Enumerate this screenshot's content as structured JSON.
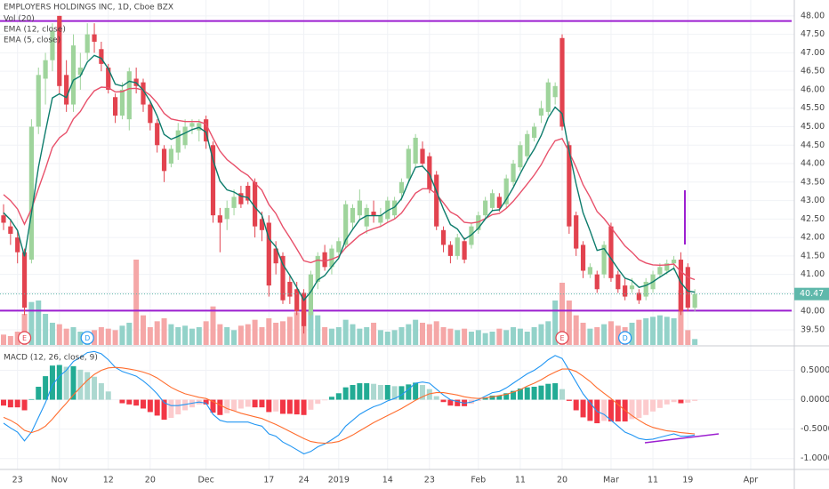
{
  "chart_data": {
    "type": "candlestick",
    "title": "EMPLOYERS HOLDINGS INC, 1D, Cboe BZX",
    "categories": [
      null,
      null,
      "23",
      null,
      null,
      null,
      null,
      null,
      "Nov",
      null,
      null,
      null,
      null,
      null,
      null,
      "12",
      null,
      null,
      null,
      null,
      null,
      "20",
      null,
      null,
      null,
      null,
      null,
      null,
      null,
      "Dec",
      null,
      null,
      null,
      null,
      null,
      null,
      null,
      null,
      "17",
      null,
      null,
      null,
      null,
      "24",
      null,
      null,
      null,
      null,
      "2019",
      null,
      null,
      null,
      null,
      null,
      null,
      "14",
      null,
      null,
      null,
      null,
      null,
      "23",
      null,
      null,
      null,
      null,
      null,
      null,
      "Feb",
      null,
      null,
      null,
      null,
      null,
      "11",
      null,
      null,
      null,
      null,
      null,
      "20",
      null,
      null,
      null,
      null,
      null,
      null,
      "Mar",
      null,
      null,
      null,
      null,
      null,
      "11",
      null,
      null,
      null,
      null,
      "19",
      null,
      null,
      null,
      null,
      null,
      null,
      null,
      null,
      "Apr"
    ],
    "open": [
      42.6,
      42.3,
      42.0,
      41.6,
      41.4,
      45.0,
      46.3,
      46.8,
      48.0,
      46.4,
      45.6,
      46.4,
      47.0,
      47.5,
      47.1,
      46.6,
      45.8,
      45.3,
      45.2,
      46.3,
      46.2,
      45.6,
      45.1,
      44.4,
      44.0,
      44.3,
      44.5,
      45.0,
      44.9,
      45.2,
      44.5,
      42.6,
      42.5,
      42.8,
      43.2,
      43.4,
      43.5,
      42.5,
      42.4,
      41.7,
      41.5,
      40.8,
      40.6,
      40.5,
      39.9,
      40.8,
      41.6,
      41.2,
      41.6,
      41.8,
      42.4,
      42.6,
      42.3,
      42.7,
      42.4,
      42.5,
      42.6,
      43.2,
      43.6,
      44.0,
      44.4,
      44.2,
      43.7,
      42.2,
      41.8,
      41.5,
      41.9,
      41.8,
      42.2,
      42.6,
      42.8,
      43.1,
      42.9,
      43.5,
      43.9,
      44.2,
      44.7,
      45.3,
      45.4,
      45.8,
      47.4,
      44.5,
      42.6,
      41.8,
      41.0,
      41.0,
      41.0,
      42.3,
      41.0,
      40.7,
      40.6,
      40.5,
      40.4,
      40.6,
      41.0,
      41.1,
      41.3,
      41.4,
      41.2,
      40.1,
      null,
      null,
      null,
      null,
      null,
      null,
      null,
      null
    ],
    "high": [
      42.9,
      42.5,
      42.2,
      41.7,
      45.2,
      46.6,
      47.0,
      47.8,
      48.0,
      46.8,
      47.5,
      47.0,
      47.8,
      47.8,
      47.3,
      46.7,
      45.9,
      46.2,
      46.6,
      46.6,
      46.3,
      45.7,
      45.2,
      44.5,
      44.5,
      45.1,
      45.2,
      45.2,
      45.2,
      45.3,
      44.6,
      42.8,
      43.0,
      43.3,
      43.4,
      43.5,
      43.6,
      42.7,
      42.6,
      41.9,
      41.6,
      41.0,
      40.8,
      40.6,
      41.1,
      41.6,
      41.8,
      41.8,
      42.0,
      43.0,
      42.9,
      43.3,
      42.9,
      43.0,
      42.8,
      43.1,
      43.1,
      43.6,
      44.5,
      44.8,
      44.6,
      44.3,
      43.8,
      42.3,
      41.9,
      42.1,
      42.0,
      42.4,
      42.7,
      43.1,
      43.3,
      43.2,
      43.7,
      44.1,
      44.6,
      44.9,
      45.1,
      45.7,
      46.3,
      46.2,
      47.5,
      44.6,
      42.7,
      41.9,
      41.3,
      41.1,
      41.9,
      42.4,
      41.1,
      40.9,
      40.9,
      40.6,
      40.9,
      41.1,
      41.3,
      41.4,
      41.5,
      41.6,
      41.3,
      40.6,
      null,
      null,
      null,
      null,
      null,
      null,
      null,
      null
    ],
    "low": [
      42.2,
      41.8,
      41.3,
      39.9,
      41.3,
      44.8,
      45.6,
      46.5,
      45.9,
      45.4,
      45.4,
      46.0,
      46.8,
      47.0,
      46.5,
      45.9,
      45.1,
      45.2,
      44.9,
      45.9,
      45.4,
      44.9,
      44.3,
      43.5,
      43.9,
      44.1,
      44.4,
      44.8,
      44.6,
      44.4,
      42.4,
      41.6,
      42.2,
      42.6,
      42.8,
      42.9,
      42.0,
      41.9,
      40.4,
      41.0,
      40.2,
      40.2,
      39.9,
      39.4,
      39.8,
      40.6,
      41.1,
      41.0,
      41.4,
      41.7,
      42.2,
      42.5,
      42.1,
      42.4,
      42.3,
      42.4,
      42.5,
      43.0,
      43.5,
      43.9,
      43.9,
      43.2,
      42.2,
      41.6,
      41.3,
      41.4,
      41.3,
      41.7,
      42.1,
      42.5,
      42.7,
      42.7,
      42.8,
      43.4,
      43.8,
      44.1,
      44.6,
      45.1,
      45.3,
      45.6,
      44.9,
      42.1,
      41.5,
      40.9,
      40.9,
      40.5,
      40.9,
      40.8,
      40.5,
      40.3,
      40.5,
      40.2,
      40.3,
      40.5,
      40.9,
      41.0,
      41.1,
      39.9,
      40.0,
      40.0,
      null,
      null,
      null,
      null,
      null,
      null,
      null,
      null
    ],
    "close": [
      42.4,
      42.1,
      41.6,
      40.1,
      45.0,
      46.4,
      46.8,
      47.6,
      46.1,
      45.6,
      47.2,
      46.6,
      47.5,
      47.3,
      46.7,
      46.0,
      45.3,
      46.0,
      46.5,
      46.1,
      45.6,
      45.1,
      44.5,
      43.8,
      44.4,
      44.9,
      45.0,
      45.1,
      45.1,
      44.6,
      42.6,
      42.4,
      42.8,
      43.1,
      42.9,
      43.0,
      42.3,
      42.2,
      40.7,
      41.3,
      40.3,
      40.4,
      40.0,
      39.6,
      41.0,
      41.5,
      41.2,
      41.7,
      41.9,
      42.9,
      42.8,
      43.0,
      42.8,
      42.6,
      42.6,
      43.0,
      43.0,
      43.5,
      44.4,
      44.7,
      44.0,
      43.3,
      42.3,
      41.8,
      41.5,
      42.0,
      41.4,
      42.3,
      42.6,
      43.0,
      43.2,
      42.8,
      43.6,
      44.0,
      44.5,
      44.8,
      45.0,
      45.5,
      46.2,
      46.1,
      45.0,
      42.3,
      41.7,
      41.1,
      41.2,
      40.6,
      41.8,
      40.9,
      40.6,
      40.4,
      40.7,
      40.3,
      40.8,
      41.0,
      41.2,
      41.3,
      41.4,
      40.0,
      40.1,
      40.47,
      null,
      null,
      null,
      null,
      null,
      null,
      null,
      null
    ],
    "up_color": "#9fd49c",
    "down_color": "#e2434f",
    "ylim": [
      39.09,
      48.43
    ],
    "yticks": [
      {
        "value": 39.5,
        "label": "39.50"
      },
      {
        "value": 40,
        "label": "40.00"
      },
      {
        "value": 40.5,
        "label": "40.50"
      },
      {
        "value": 41,
        "label": "41.00"
      },
      {
        "value": 41.5,
        "label": "41.50"
      },
      {
        "value": 42,
        "label": "42.00"
      },
      {
        "value": 42.5,
        "label": "42.50"
      },
      {
        "value": 43,
        "label": "43.00"
      },
      {
        "value": 43.5,
        "label": "43.50"
      },
      {
        "value": 44,
        "label": "44.00"
      },
      {
        "value": 44.5,
        "label": "44.50"
      },
      {
        "value": 45,
        "label": "45.00"
      },
      {
        "value": 45.5,
        "label": "45.50"
      },
      {
        "value": 46,
        "label": "46.00"
      },
      {
        "value": 46.5,
        "label": "46.50"
      },
      {
        "value": 47,
        "label": "47.00"
      },
      {
        "value": 47.5,
        "label": "47.50"
      },
      {
        "value": 48,
        "label": "48.00"
      }
    ],
    "grid": true,
    "last_price": {
      "value": 40.47,
      "label": "40.47",
      "color": "#5fb8ab"
    },
    "levels": [
      47.86,
      40.02
    ],
    "level_color": "#9c1fd0",
    "volume": {
      "name": "Vol (20)",
      "up_color": "#93d2c9",
      "down_color": "#f5a7a7",
      "ylim": [
        0,
        300
      ],
      "values": [
        35,
        30,
        45,
        105,
        145,
        150,
        105,
        75,
        70,
        55,
        60,
        45,
        40,
        50,
        60,
        55,
        50,
        65,
        75,
        288,
        100,
        60,
        80,
        90,
        70,
        60,
        65,
        55,
        60,
        80,
        130,
        70,
        60,
        50,
        65,
        70,
        85,
        60,
        90,
        75,
        80,
        95,
        110,
        165,
        120,
        100,
        60,
        55,
        60,
        85,
        70,
        55,
        60,
        75,
        50,
        45,
        50,
        60,
        70,
        85,
        75,
        70,
        80,
        60,
        55,
        50,
        55,
        45,
        50,
        40,
        45,
        55,
        50,
        60,
        55,
        45,
        60,
        70,
        80,
        150,
        210,
        150,
        100,
        75,
        55,
        60,
        70,
        80,
        65,
        60,
        75,
        85,
        90,
        95,
        100,
        95,
        90,
        185,
        50,
        20,
        null,
        null,
        null,
        null,
        null,
        null,
        null,
        null
      ]
    },
    "series": [
      {
        "name": "EMA (12, close)",
        "color": "#e8506a",
        "values": [
          43.16,
          43.0,
          42.77,
          42.36,
          42.77,
          43.33,
          43.86,
          44.44,
          44.7,
          44.84,
          45.21,
          45.41,
          45.73,
          45.97,
          46.07,
          46.06,
          45.94,
          45.95,
          46.03,
          46.04,
          45.99,
          45.85,
          45.64,
          45.36,
          45.21,
          45.17,
          45.14,
          45.14,
          45.14,
          45.07,
          44.69,
          44.34,
          44.11,
          43.96,
          43.8,
          43.68,
          43.47,
          43.28,
          42.89,
          42.65,
          42.29,
          42.0,
          41.69,
          41.37,
          41.32,
          41.39,
          41.36,
          41.41,
          41.49,
          41.72,
          41.89,
          42.06,
          42.17,
          42.24,
          42.3,
          42.41,
          42.5,
          42.66,
          42.93,
          43.2,
          43.32,
          43.32,
          43.17,
          42.94,
          42.69,
          42.59,
          42.41,
          42.39,
          42.42,
          42.51,
          42.62,
          42.65,
          42.79,
          42.98,
          43.21,
          43.45,
          43.69,
          43.97,
          44.33,
          44.62,
          44.68,
          44.31,
          43.9,
          43.43,
          43.09,
          42.7,
          42.51,
          42.27,
          42.02,
          41.77,
          41.6,
          41.4,
          41.31,
          41.26,
          41.25,
          41.26,
          41.28,
          41.08,
          40.93,
          40.86,
          null,
          null,
          null,
          null,
          null,
          null,
          null,
          null
        ]
      },
      {
        "name": "EMA (5, close)",
        "color": "#0d7c6c",
        "values": [
          42.67,
          42.48,
          42.19,
          41.49,
          42.66,
          43.91,
          44.87,
          45.78,
          45.89,
          45.79,
          46.26,
          46.37,
          46.75,
          46.93,
          46.85,
          46.57,
          46.15,
          46.1,
          46.23,
          46.19,
          45.99,
          45.69,
          45.29,
          44.79,
          44.66,
          44.74,
          44.83,
          44.92,
          44.98,
          44.85,
          44.1,
          43.53,
          43.29,
          43.23,
          43.12,
          43.08,
          42.82,
          42.61,
          41.97,
          41.75,
          41.27,
          40.98,
          40.65,
          40.3,
          40.53,
          40.85,
          40.97,
          41.21,
          41.44,
          41.93,
          42.22,
          42.48,
          42.59,
          42.59,
          42.59,
          42.73,
          42.82,
          43.05,
          43.5,
          43.9,
          43.93,
          43.72,
          43.25,
          42.77,
          42.35,
          42.23,
          41.95,
          42.07,
          42.25,
          42.5,
          42.73,
          42.75,
          43.03,
          43.35,
          43.73,
          44.09,
          44.39,
          44.76,
          45.24,
          45.53,
          45.35,
          44.33,
          43.45,
          42.67,
          42.18,
          41.65,
          41.7,
          41.43,
          41.15,
          40.9,
          40.83,
          40.65,
          40.7,
          40.8,
          40.93,
          41.05,
          41.17,
          40.78,
          40.55,
          40.52,
          null,
          null,
          null,
          null,
          null,
          null,
          null,
          null
        ]
      }
    ],
    "events": [
      "E",
      "D",
      "E",
      "D"
    ],
    "macd": {
      "title": "MACD (12, 26, close, 9)",
      "ylim": [
        -1.17,
        0.9
      ],
      "yticks": [
        {
          "value": 0.5,
          "label": "0.5000"
        },
        {
          "value": 0,
          "label": "0.0000"
        },
        {
          "value": -0.5,
          "label": "-0.5000"
        },
        {
          "value": -1,
          "label": "-1.0000"
        }
      ],
      "hist_colors": [
        "#22ab94",
        "#acd8d0",
        "#f23645",
        "#fccbcd"
      ],
      "histogram": [
        -0.1,
        -0.13,
        -0.13,
        -0.18,
        0.01,
        0.22,
        0.4,
        0.58,
        0.59,
        0.56,
        0.57,
        0.51,
        0.47,
        0.39,
        0.28,
        0.14,
        0.0,
        -0.06,
        -0.08,
        -0.1,
        -0.15,
        -0.21,
        -0.27,
        -0.34,
        -0.31,
        -0.25,
        -0.18,
        -0.13,
        -0.08,
        -0.08,
        -0.22,
        -0.26,
        -0.23,
        -0.19,
        -0.15,
        -0.12,
        -0.13,
        -0.13,
        -0.21,
        -0.2,
        -0.24,
        -0.24,
        -0.25,
        -0.26,
        -0.17,
        -0.07,
        -0.01,
        0.05,
        0.11,
        0.21,
        0.25,
        0.28,
        0.28,
        0.27,
        0.25,
        0.25,
        0.23,
        0.23,
        0.26,
        0.29,
        0.25,
        0.18,
        0.06,
        -0.04,
        -0.1,
        -0.11,
        -0.11,
        -0.07,
        -0.02,
        0.03,
        0.07,
        0.07,
        0.11,
        0.15,
        0.19,
        0.21,
        0.22,
        0.24,
        0.27,
        0.28,
        0.18,
        -0.02,
        -0.18,
        -0.3,
        -0.36,
        -0.4,
        -0.36,
        -0.37,
        -0.37,
        -0.37,
        -0.33,
        -0.31,
        -0.26,
        -0.2,
        -0.14,
        -0.08,
        -0.04,
        -0.06,
        -0.05,
        -0.02,
        null,
        null,
        null,
        null,
        null,
        null,
        null,
        null
      ],
      "series": [
        {
          "color": "#2196f3",
          "values": [
            -0.4,
            -0.48,
            -0.55,
            -0.7,
            -0.55,
            -0.3,
            -0.05,
            0.25,
            0.4,
            0.5,
            0.65,
            0.72,
            0.8,
            0.82,
            0.78,
            0.68,
            0.55,
            0.48,
            0.44,
            0.4,
            0.32,
            0.22,
            0.1,
            -0.05,
            -0.1,
            -0.1,
            -0.08,
            -0.06,
            -0.04,
            -0.06,
            -0.25,
            -0.35,
            -0.38,
            -0.38,
            -0.38,
            -0.38,
            -0.42,
            -0.45,
            -0.58,
            -0.62,
            -0.72,
            -0.78,
            -0.85,
            -0.92,
            -0.88,
            -0.8,
            -0.75,
            -0.68,
            -0.6,
            -0.45,
            -0.35,
            -0.25,
            -0.18,
            -0.12,
            -0.08,
            -0.02,
            0.02,
            0.08,
            0.18,
            0.28,
            0.3,
            0.28,
            0.18,
            0.08,
            0.0,
            -0.03,
            -0.06,
            -0.04,
            0.0,
            0.06,
            0.12,
            0.14,
            0.2,
            0.28,
            0.36,
            0.44,
            0.5,
            0.58,
            0.68,
            0.75,
            0.7,
            0.5,
            0.3,
            0.1,
            -0.05,
            -0.2,
            -0.25,
            -0.35,
            -0.45,
            -0.55,
            -0.6,
            -0.66,
            -0.68,
            -0.67,
            -0.64,
            -0.61,
            -0.58,
            -0.62,
            -0.62,
            -0.6,
            null,
            null,
            null,
            null,
            null,
            null,
            null,
            null
          ]
        },
        {
          "color": "#ff6d2e",
          "values": [
            -0.3,
            -0.35,
            -0.42,
            -0.52,
            -0.56,
            -0.52,
            -0.45,
            -0.33,
            -0.19,
            -0.06,
            0.08,
            0.21,
            0.33,
            0.43,
            0.5,
            0.54,
            0.55,
            0.54,
            0.52,
            0.5,
            0.47,
            0.43,
            0.37,
            0.29,
            0.21,
            0.15,
            0.1,
            0.07,
            0.04,
            0.02,
            -0.03,
            -0.09,
            -0.15,
            -0.19,
            -0.23,
            -0.26,
            -0.29,
            -0.32,
            -0.37,
            -0.42,
            -0.48,
            -0.54,
            -0.6,
            -0.66,
            -0.71,
            -0.73,
            -0.74,
            -0.73,
            -0.71,
            -0.66,
            -0.6,
            -0.53,
            -0.46,
            -0.39,
            -0.33,
            -0.27,
            -0.21,
            -0.15,
            -0.08,
            -0.01,
            0.05,
            0.1,
            0.12,
            0.12,
            0.1,
            0.08,
            0.05,
            0.03,
            0.02,
            0.03,
            0.05,
            0.07,
            0.09,
            0.13,
            0.17,
            0.23,
            0.28,
            0.34,
            0.41,
            0.47,
            0.52,
            0.52,
            0.48,
            0.4,
            0.31,
            0.2,
            0.11,
            0.02,
            -0.08,
            -0.18,
            -0.27,
            -0.35,
            -0.42,
            -0.47,
            -0.5,
            -0.53,
            -0.54,
            -0.56,
            -0.57,
            -0.58,
            null,
            null,
            null,
            null,
            null,
            null,
            null,
            null
          ]
        }
      ]
    }
  }
}
